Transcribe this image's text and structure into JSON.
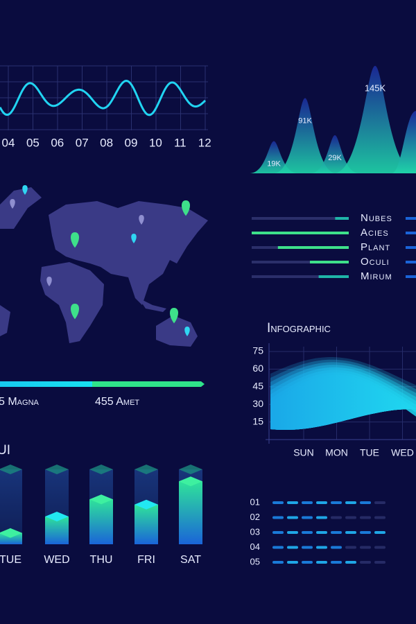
{
  "timeline": {
    "labels": [
      "04",
      "05",
      "06",
      "07",
      "08",
      "09",
      "10",
      "11",
      "12"
    ]
  },
  "peaks": {
    "values": [
      19000,
      91000,
      29000,
      145000
    ],
    "value_labels": [
      "19K",
      "91K",
      "29K",
      "145K"
    ]
  },
  "progress": {
    "labels": [
      "5 Magna",
      "455 Amet"
    ]
  },
  "legend_bars": {
    "labels": [
      "Nubes",
      "Acies",
      "Plant",
      "Oculi",
      "Mirum"
    ],
    "values": [
      14,
      100,
      73,
      40,
      31
    ],
    "colors": [
      "#1fb5a8",
      "#3ee08a",
      "#3ee08a",
      "#3ee08a",
      "#1fb5a8"
    ]
  },
  "infographic": {
    "title": "Infographic",
    "yticks": [
      75,
      60,
      45,
      30,
      15
    ],
    "categories": [
      "SUN",
      "MON",
      "TUE",
      "WED"
    ]
  },
  "week_bars": {
    "title": "UI",
    "categories": [
      "TUE",
      "WED",
      "THU",
      "FRI",
      "SAT"
    ],
    "values": [
      15,
      37,
      60,
      53,
      84
    ]
  },
  "dash_rows": {
    "labels": [
      "01",
      "02",
      "03",
      "04",
      "05"
    ],
    "values": [
      7,
      4,
      8,
      5,
      6
    ]
  }
}
